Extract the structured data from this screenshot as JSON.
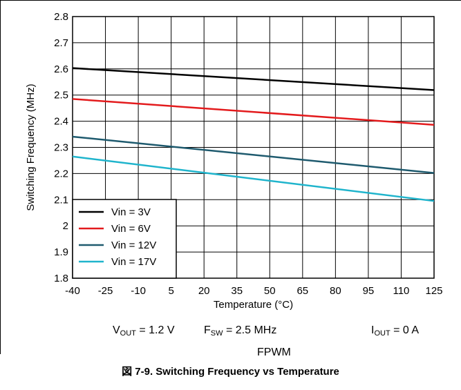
{
  "chart_data": {
    "type": "line",
    "title": "",
    "xlabel": "Temperature (°C)",
    "ylabel": "Switching Frequency (MHz)",
    "xlim": [
      -40,
      125
    ],
    "ylim": [
      1.8,
      2.8
    ],
    "x_ticks": [
      "-40",
      "-25",
      "-10",
      "5",
      "20",
      "35",
      "50",
      "65",
      "80",
      "95",
      "110",
      "125"
    ],
    "y_ticks": [
      "1.8",
      "1.9",
      "2",
      "2.1",
      "2.2",
      "2.3",
      "2.4",
      "2.5",
      "2.6",
      "2.7",
      "2.8"
    ],
    "grid": true,
    "legend_position": "bottom-left",
    "series": [
      {
        "name": "Vin = 3V",
        "color": "#000000",
        "x": [
          -40,
          125
        ],
        "y": [
          2.603,
          2.519
        ]
      },
      {
        "name": "Vin = 6V",
        "color": "#e31a1c",
        "x": [
          -40,
          125
        ],
        "y": [
          2.485,
          2.386
        ]
      },
      {
        "name": "Vin = 12V",
        "color": "#1e5a6e",
        "x": [
          -40,
          125
        ],
        "y": [
          2.341,
          2.202
        ]
      },
      {
        "name": "Vin = 17V",
        "color": "#1fb4cc",
        "x": [
          -40,
          125
        ],
        "y": [
          2.265,
          2.095
        ]
      }
    ]
  },
  "conditions": {
    "vout_sym": "V",
    "vout_sub": "OUT",
    "vout_val": " = 1.2 V",
    "fsw_sym": "F",
    "fsw_sub": "SW",
    "fsw_val": " = 2.5 MHz",
    "iout_sym": "I",
    "iout_sub": "OUT",
    "iout_val": " = 0 A",
    "mode": "FPWM"
  },
  "caption": "図 7-9. Switching Frequency vs Temperature"
}
